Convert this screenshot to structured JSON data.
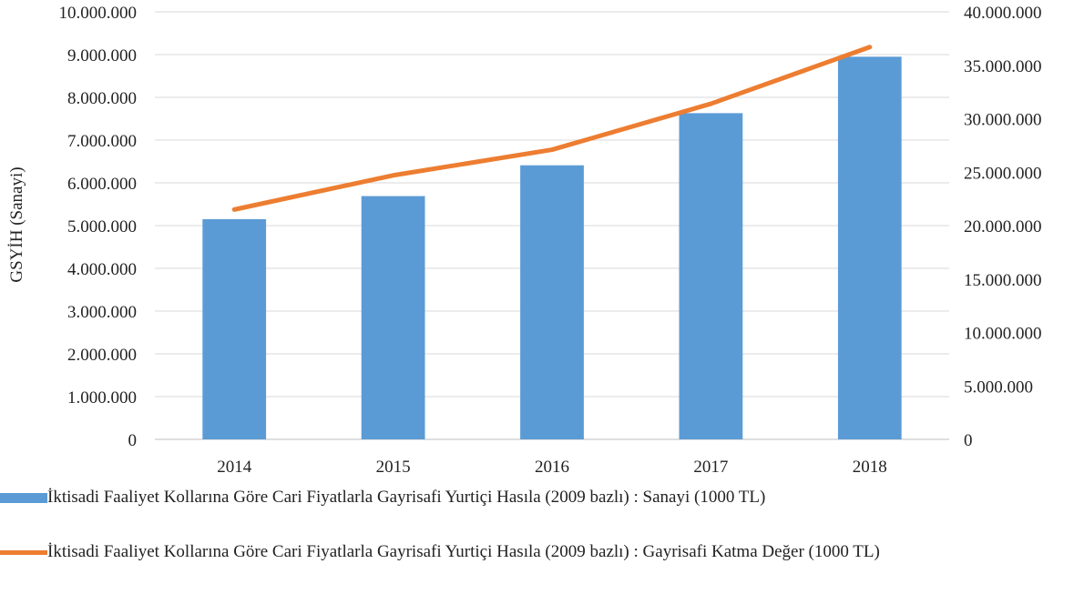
{
  "chart_data": {
    "type": "bar",
    "categories": [
      "2014",
      "2015",
      "2016",
      "2017",
      "2018"
    ],
    "ylabel": "GSYİH (Sanayi)",
    "ylim": [
      0,
      10000000
    ],
    "y2lim": [
      0,
      40000000
    ],
    "yticks": [
      "0",
      "1.000.000",
      "2.000.000",
      "3.000.000",
      "4.000.000",
      "5.000.000",
      "6.000.000",
      "7.000.000",
      "8.000.000",
      "9.000.000",
      "10.000.000"
    ],
    "y2ticks": [
      "0",
      "5.000.000",
      "10.000.000",
      "15.000.000",
      "20.000.000",
      "25.000.000",
      "30.000.000",
      "35.000.000",
      "40.000.000"
    ],
    "grid": true,
    "legend_position": "bottom",
    "series": [
      {
        "name": "İktisadi Faaliyet Kollarına Göre Cari Fiyatlarla Gayrisafi Yurtiçi Hasıla (2009 bazlı) : Sanayi (1000 TL)",
        "type": "bar",
        "axis": "left",
        "color": "#5B9BD5",
        "values": [
          5150000,
          5690000,
          6410000,
          7630000,
          8950000
        ]
      },
      {
        "name": "İktisadi Faaliyet Kollarına Göre Cari Fiyatlarla Gayrisafi Yurtiçi Hasıla (2009 bazlı) : Gayrisafi Katma Değer (1000 TL)",
        "type": "line",
        "axis": "right",
        "color": "#ED7D31",
        "values": [
          21500000,
          24700000,
          27100000,
          31400000,
          36700000
        ]
      }
    ]
  }
}
